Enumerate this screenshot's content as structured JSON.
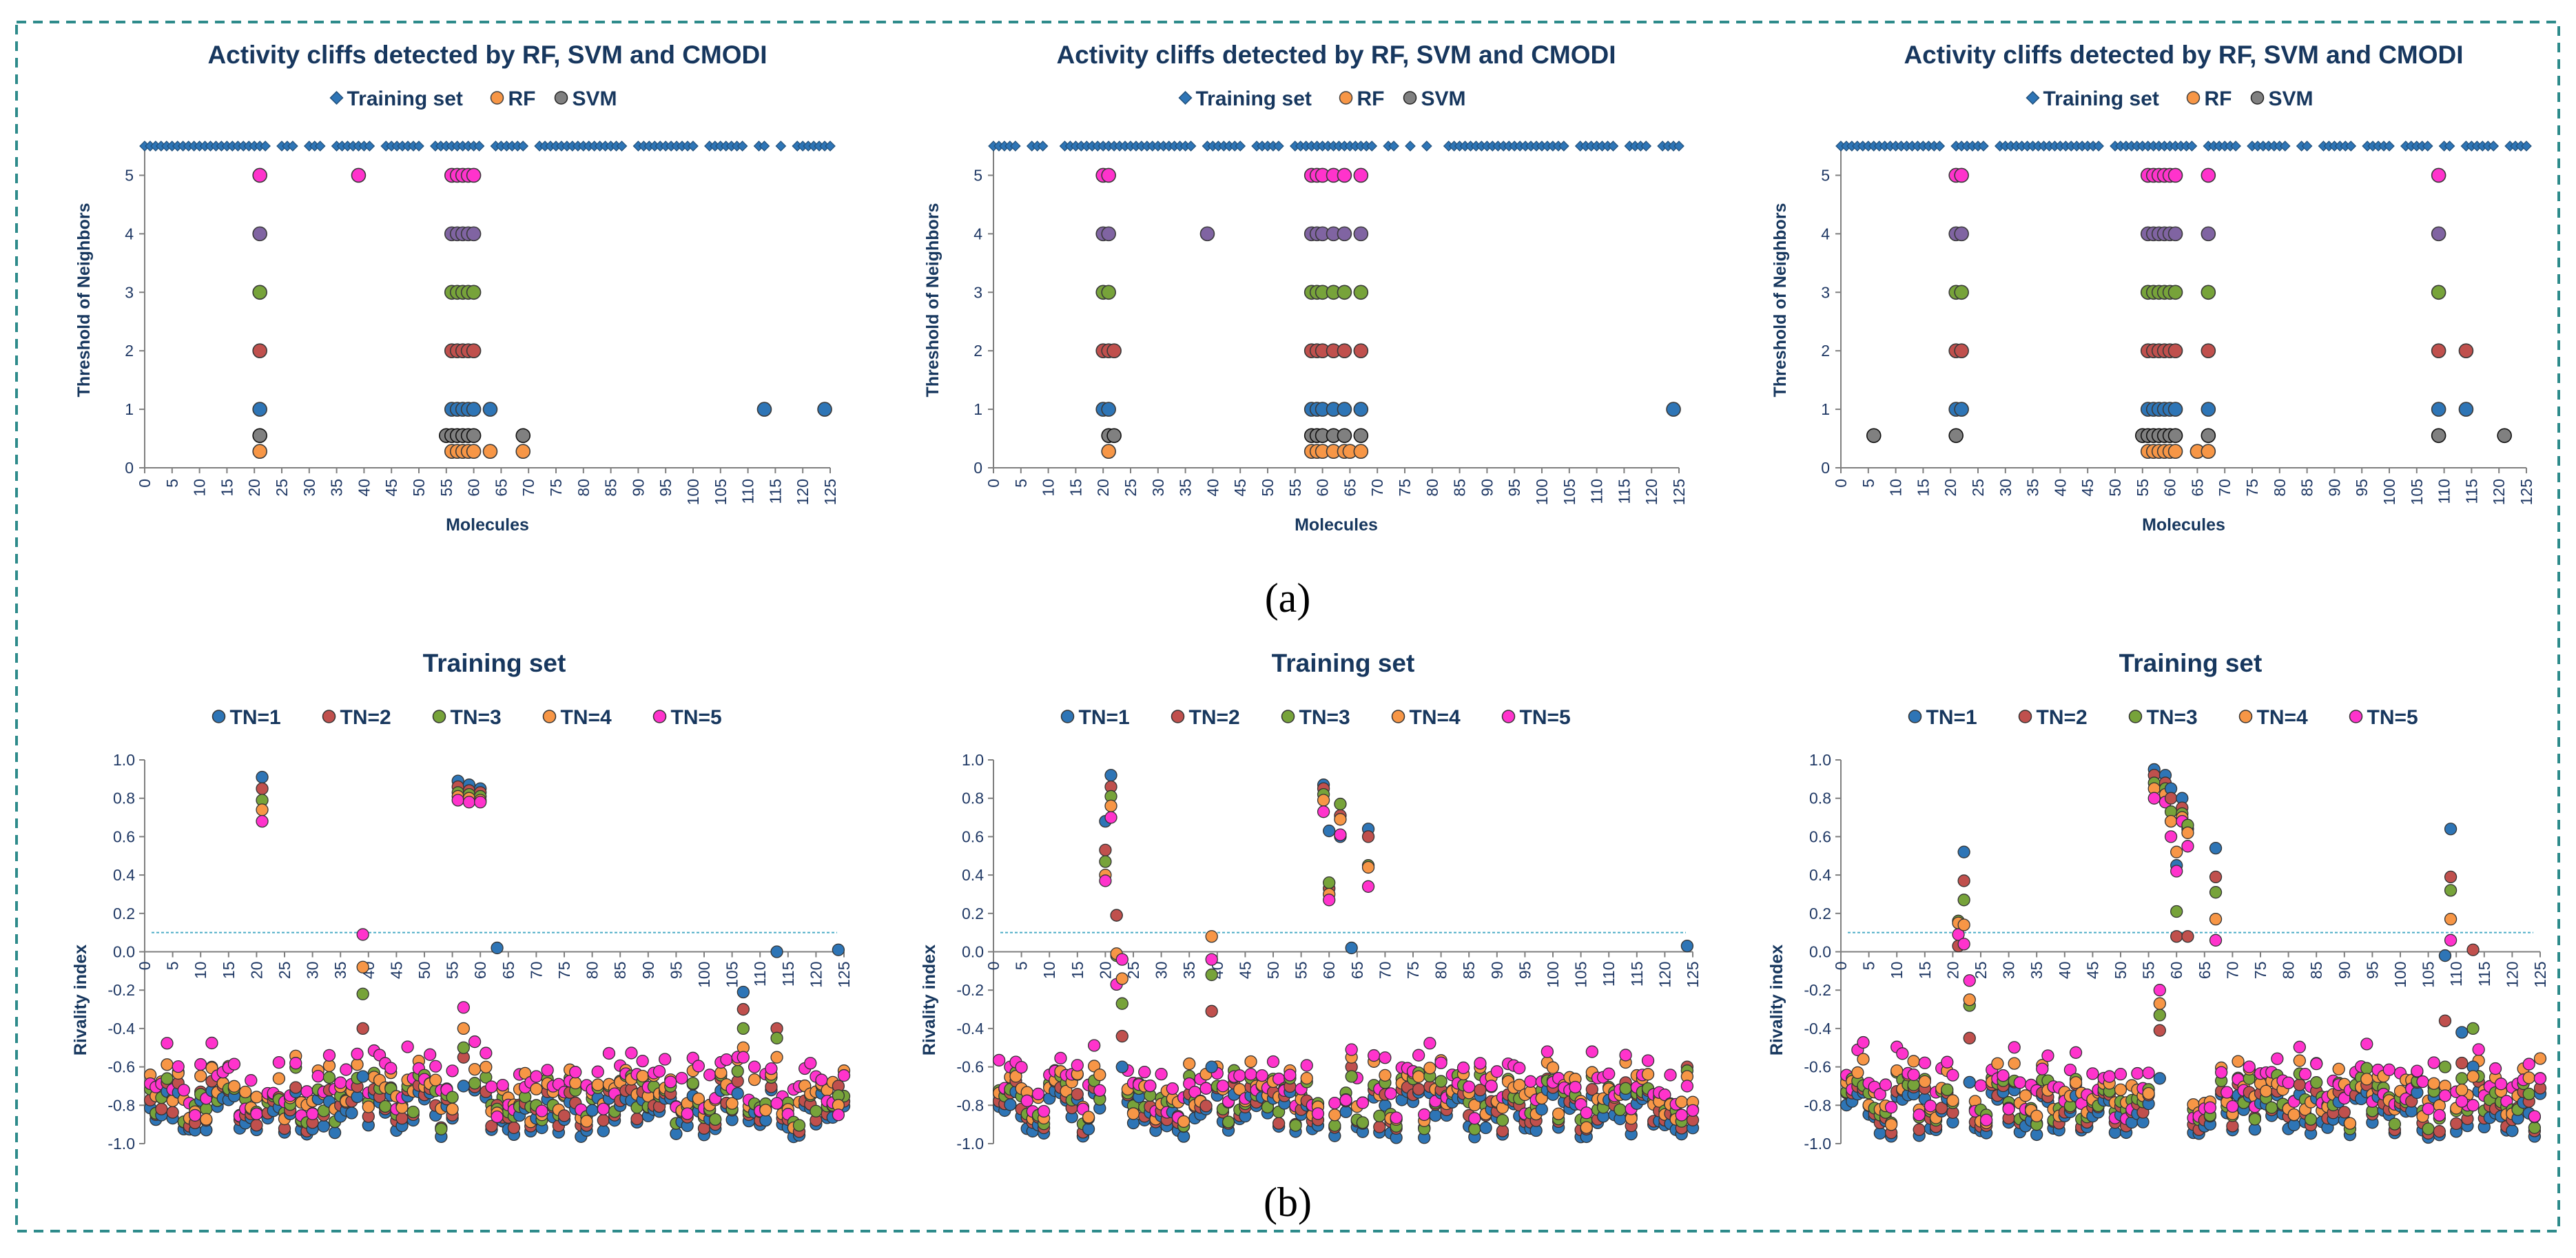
{
  "colors": {
    "border": "#2e8b8b",
    "text": "#17375e",
    "train": "#2e75b6",
    "tn1": "#2e75b6",
    "tn2": "#c0504d",
    "tn3": "#77a33a",
    "tn4": "#f79646",
    "tn5": "#ff33cc",
    "rf": "#f79646",
    "svm": "#808080",
    "refline": "#4bacc6"
  },
  "panel_labels": {
    "a": "(a)",
    "b": "(b)"
  },
  "chart_data": [
    {
      "type": "scatter",
      "title": "Activity cliffs detected by RF, SVM and CMODI",
      "xlabel": "Molecules",
      "ylabel": "Threshold of Neighbors",
      "xlim": [
        0,
        125
      ],
      "ylim": [
        0,
        5.5
      ],
      "xticks": [
        "0",
        "5",
        "10",
        "15",
        "20",
        "25",
        "30",
        "35",
        "40",
        "45",
        "50",
        "55",
        "60",
        "65",
        "70",
        "75",
        "80",
        "85",
        "90",
        "95",
        "100",
        "105",
        "110",
        "115",
        "120",
        "125"
      ],
      "yticks": [
        "0",
        "1",
        "2",
        "3",
        "4",
        "5"
      ],
      "legend": [
        "Training set",
        "RF",
        "SVM"
      ],
      "training_gaps": [
        [
          23,
          24
        ],
        [
          28,
          29
        ],
        [
          33,
          34
        ],
        [
          42,
          43
        ],
        [
          51,
          52
        ],
        [
          62,
          63
        ],
        [
          70,
          71
        ],
        [
          88,
          89
        ],
        [
          101,
          102
        ],
        [
          110,
          111
        ],
        [
          114,
          115
        ],
        [
          117,
          118
        ]
      ],
      "series": [
        {
          "name": "Training set",
          "y": 5.5
        },
        {
          "name": "TN=5",
          "x": [
            21,
            39,
            56,
            57,
            58,
            59,
            60
          ],
          "y": 5
        },
        {
          "name": "TN=4",
          "x": [
            21,
            56,
            57,
            58,
            59,
            60
          ],
          "y": 4
        },
        {
          "name": "TN=3",
          "x": [
            21,
            56,
            57,
            58,
            59,
            60
          ],
          "y": 3
        },
        {
          "name": "TN=2",
          "x": [
            21,
            56,
            57,
            58,
            59,
            60
          ],
          "y": 2
        },
        {
          "name": "TN=1",
          "x": [
            21,
            56,
            57,
            58,
            59,
            60,
            63,
            113,
            124
          ],
          "y": 1
        },
        {
          "name": "SVM",
          "x": [
            21,
            55,
            56,
            57,
            58,
            59,
            60,
            69
          ],
          "y": 0.55
        },
        {
          "name": "RF",
          "x": [
            21,
            56,
            57,
            58,
            59,
            60,
            63,
            69
          ],
          "y": 0.28
        }
      ]
    },
    {
      "type": "scatter",
      "title": "Activity cliffs detected by RF, SVM and CMODI",
      "xlabel": "Molecules",
      "ylabel": "Threshold of Neighbors",
      "xlim": [
        0,
        125
      ],
      "ylim": [
        0,
        5.5
      ],
      "xticks": [
        "0",
        "5",
        "10",
        "15",
        "20",
        "25",
        "30",
        "35",
        "40",
        "45",
        "50",
        "55",
        "60",
        "65",
        "70",
        "75",
        "80",
        "85",
        "90",
        "95",
        "100",
        "105",
        "110",
        "115",
        "120",
        "125"
      ],
      "yticks": [
        "0",
        "1",
        "2",
        "3",
        "4",
        "5"
      ],
      "legend": [
        "Training set",
        "RF",
        "SVM"
      ],
      "training_gaps": [
        [
          5,
          6
        ],
        [
          10,
          12
        ],
        [
          37,
          38
        ],
        [
          46,
          47
        ],
        [
          53,
          54
        ],
        [
          70,
          71
        ],
        [
          74,
          75
        ],
        [
          77,
          78
        ],
        [
          80,
          82
        ],
        [
          105,
          106
        ],
        [
          114,
          115
        ],
        [
          120,
          121
        ]
      ],
      "series": [
        {
          "name": "Training set",
          "y": 5.5
        },
        {
          "name": "TN=5",
          "x": [
            20,
            21,
            58,
            59,
            60,
            62,
            64,
            67
          ],
          "y": 5
        },
        {
          "name": "TN=4",
          "x": [
            20,
            21,
            39,
            58,
            59,
            60,
            62,
            64,
            67
          ],
          "y": 4
        },
        {
          "name": "TN=3",
          "x": [
            20,
            21,
            58,
            59,
            60,
            62,
            64,
            67
          ],
          "y": 3
        },
        {
          "name": "TN=2",
          "x": [
            20,
            21,
            22,
            58,
            59,
            60,
            62,
            64,
            67
          ],
          "y": 2
        },
        {
          "name": "TN=1",
          "x": [
            20,
            21,
            58,
            59,
            60,
            62,
            64,
            67,
            124
          ],
          "y": 1
        },
        {
          "name": "SVM",
          "x": [
            21,
            22,
            58,
            59,
            60,
            62,
            64,
            67
          ],
          "y": 0.55
        },
        {
          "name": "RF",
          "x": [
            21,
            58,
            59,
            60,
            62,
            64,
            65,
            67
          ],
          "y": 0.28
        }
      ]
    },
    {
      "type": "scatter",
      "title": "Activity cliffs detected by RF, SVM and CMODI",
      "xlabel": "Molecules",
      "ylabel": "Threshold of Neighbors",
      "xlim": [
        0,
        125
      ],
      "ylim": [
        0,
        5.5
      ],
      "xticks": [
        "0",
        "5",
        "10",
        "15",
        "20",
        "25",
        "30",
        "35",
        "40",
        "45",
        "50",
        "55",
        "60",
        "65",
        "70",
        "75",
        "80",
        "85",
        "90",
        "95",
        "100",
        "105",
        "110",
        "115",
        "120",
        "125"
      ],
      "yticks": [
        "0",
        "1",
        "2",
        "3",
        "4",
        "5"
      ],
      "legend": [
        "Training set",
        "RF",
        "SVM"
      ],
      "training_gaps": [
        [
          19,
          20
        ],
        [
          27,
          28
        ],
        [
          48,
          49
        ],
        [
          65,
          66
        ],
        [
          73,
          74
        ],
        [
          82,
          83
        ],
        [
          86,
          87
        ],
        [
          94,
          95
        ],
        [
          101,
          102
        ],
        [
          108,
          109
        ],
        [
          112,
          113
        ],
        [
          120,
          121
        ]
      ],
      "series": [
        {
          "name": "Training set",
          "y": 5.5
        },
        {
          "name": "TN=5",
          "x": [
            21,
            22,
            56,
            57,
            58,
            59,
            60,
            61,
            67,
            109
          ],
          "y": 5
        },
        {
          "name": "TN=4",
          "x": [
            21,
            22,
            56,
            57,
            58,
            59,
            60,
            61,
            67,
            109
          ],
          "y": 4
        },
        {
          "name": "TN=3",
          "x": [
            21,
            22,
            56,
            57,
            58,
            59,
            60,
            61,
            67,
            109
          ],
          "y": 3
        },
        {
          "name": "TN=2",
          "x": [
            21,
            22,
            56,
            57,
            58,
            59,
            60,
            61,
            67,
            109,
            114
          ],
          "y": 2
        },
        {
          "name": "TN=1",
          "x": [
            21,
            22,
            56,
            57,
            58,
            59,
            60,
            61,
            67,
            109,
            114
          ],
          "y": 1
        },
        {
          "name": "SVM",
          "x": [
            6,
            21,
            55,
            56,
            57,
            58,
            59,
            60,
            61,
            67,
            109,
            121
          ],
          "y": 0.55
        },
        {
          "name": "RF",
          "x": [
            56,
            57,
            58,
            59,
            60,
            61,
            65,
            67
          ],
          "y": 0.28
        }
      ]
    },
    {
      "type": "scatter",
      "title": "Training set",
      "xlabel": "",
      "ylabel": "Rivality index",
      "xlim": [
        0,
        125
      ],
      "ylim": [
        -1.0,
        1.0
      ],
      "xticks": [
        "0",
        "5",
        "10",
        "15",
        "20",
        "25",
        "30",
        "35",
        "40",
        "45",
        "50",
        "55",
        "60",
        "65",
        "70",
        "75",
        "80",
        "85",
        "90",
        "95",
        "100",
        "105",
        "110",
        "115",
        "120",
        "125"
      ],
      "yticks": [
        "1.0",
        "0.8",
        "0.6",
        "0.4",
        "0.2",
        "0.0",
        "-0.2",
        "-0.4",
        "-0.6",
        "-0.8",
        "-1.0"
      ],
      "legend": [
        "TN=1",
        "TN=2",
        "TN=3",
        "TN=4",
        "TN=5"
      ],
      "reference_line": 0.1,
      "peaks": [
        {
          "x": 21,
          "v": [
            0.91,
            0.85,
            0.79,
            0.74,
            0.68
          ]
        },
        {
          "x": 39,
          "v": [
            -0.65,
            -0.4,
            -0.22,
            -0.08,
            0.09
          ]
        },
        {
          "x": 56,
          "v": [
            0.89,
            0.86,
            0.83,
            0.81,
            0.79
          ]
        },
        {
          "x": 57,
          "v": [
            -0.7,
            -0.55,
            -0.5,
            -0.4,
            -0.29
          ]
        },
        {
          "x": 58,
          "v": [
            0.87,
            0.84,
            0.82,
            0.8,
            0.78
          ]
        },
        {
          "x": 60,
          "v": [
            0.85,
            0.83,
            0.81,
            0.79,
            0.78
          ]
        },
        {
          "x": 63,
          "v": [
            0.02,
            -0.8,
            -0.82,
            -0.84,
            -0.86
          ]
        },
        {
          "x": 107,
          "v": [
            -0.21,
            -0.3,
            -0.4,
            -0.5,
            -0.55
          ]
        },
        {
          "x": 113,
          "v": [
            0.0,
            -0.4,
            -0.45,
            -0.55,
            -0.79
          ]
        },
        {
          "x": 124,
          "v": [
            0.01,
            -0.7,
            -0.75,
            -0.8,
            -0.85
          ]
        }
      ]
    },
    {
      "type": "scatter",
      "title": "Training set",
      "xlabel": "",
      "ylabel": "Rivality index",
      "xlim": [
        0,
        125
      ],
      "ylim": [
        -1.0,
        1.0
      ],
      "xticks": [
        "0",
        "5",
        "10",
        "15",
        "20",
        "25",
        "30",
        "35",
        "40",
        "45",
        "50",
        "55",
        "60",
        "65",
        "70",
        "75",
        "80",
        "85",
        "90",
        "95",
        "100",
        "105",
        "110",
        "115",
        "120",
        "125"
      ],
      "yticks": [
        "1.0",
        "0.8",
        "0.6",
        "0.4",
        "0.2",
        "0.0",
        "-0.2",
        "-0.4",
        "-0.6",
        "-0.8",
        "-1.0"
      ],
      "legend": [
        "TN=1",
        "TN=2",
        "TN=3",
        "TN=4",
        "TN=5"
      ],
      "reference_line": 0.1,
      "peaks": [
        {
          "x": 20,
          "v": [
            0.68,
            0.53,
            0.47,
            0.4,
            0.37
          ]
        },
        {
          "x": 21,
          "v": [
            0.92,
            0.86,
            0.81,
            0.76,
            0.7
          ]
        },
        {
          "x": 22,
          "v": [
            0.19,
            0.19,
            -0.02,
            -0.01,
            -0.17
          ]
        },
        {
          "x": 23,
          "v": [
            -0.6,
            -0.44,
            -0.27,
            -0.14,
            -0.04
          ]
        },
        {
          "x": 39,
          "v": [
            -0.6,
            -0.31,
            -0.12,
            0.08,
            -0.04
          ]
        },
        {
          "x": 59,
          "v": [
            0.87,
            0.85,
            0.82,
            0.79,
            0.73
          ]
        },
        {
          "x": 60,
          "v": [
            0.63,
            0.33,
            0.36,
            0.3,
            0.27
          ]
        },
        {
          "x": 62,
          "v": [
            0.6,
            0.71,
            0.77,
            0.69,
            0.61
          ]
        },
        {
          "x": 64,
          "v": [
            0.02,
            -0.6,
            -0.65,
            -0.55,
            -0.51
          ]
        },
        {
          "x": 67,
          "v": [
            0.64,
            0.6,
            0.45,
            0.44,
            0.34
          ]
        },
        {
          "x": 124,
          "v": [
            0.03,
            -0.6,
            -0.62,
            -0.65,
            -0.7
          ]
        }
      ]
    },
    {
      "type": "scatter",
      "title": "Training set",
      "xlabel": "",
      "ylabel": "Rivality index",
      "xlim": [
        0,
        125
      ],
      "ylim": [
        -1.0,
        1.0
      ],
      "xticks": [
        "0",
        "5",
        "10",
        "15",
        "20",
        "25",
        "30",
        "35",
        "40",
        "45",
        "50",
        "55",
        "60",
        "65",
        "70",
        "75",
        "80",
        "85",
        "90",
        "95",
        "100",
        "105",
        "110",
        "115",
        "120",
        "125"
      ],
      "yticks": [
        "1.0",
        "0.8",
        "0.6",
        "0.4",
        "0.2",
        "0.0",
        "-0.2",
        "-0.4",
        "-0.6",
        "-0.8",
        "-1.0"
      ],
      "legend": [
        "TN=1",
        "TN=2",
        "TN=3",
        "TN=4",
        "TN=5"
      ],
      "reference_line": 0.1,
      "peaks": [
        {
          "x": 21,
          "v": [
            0.16,
            0.03,
            0.16,
            0.15,
            0.09
          ]
        },
        {
          "x": 22,
          "v": [
            0.52,
            0.37,
            0.27,
            0.14,
            0.04
          ]
        },
        {
          "x": 23,
          "v": [
            -0.68,
            -0.45,
            -0.28,
            -0.25,
            -0.15
          ]
        },
        {
          "x": 56,
          "v": [
            0.95,
            0.92,
            0.88,
            0.85,
            0.8
          ]
        },
        {
          "x": 57,
          "v": [
            -0.66,
            -0.41,
            -0.33,
            -0.27,
            -0.2
          ]
        },
        {
          "x": 58,
          "v": [
            0.92,
            0.88,
            0.85,
            0.82,
            0.78
          ]
        },
        {
          "x": 59,
          "v": [
            0.85,
            0.8,
            0.73,
            0.68,
            0.6
          ]
        },
        {
          "x": 60,
          "v": [
            0.45,
            0.08,
            0.21,
            0.52,
            0.42
          ]
        },
        {
          "x": 61,
          "v": [
            0.8,
            0.75,
            0.72,
            0.7,
            0.68
          ]
        },
        {
          "x": 62,
          "v": [
            0.64,
            0.08,
            0.66,
            0.62,
            0.55
          ]
        },
        {
          "x": 67,
          "v": [
            0.54,
            0.39,
            0.31,
            0.17,
            0.06
          ]
        },
        {
          "x": 108,
          "v": [
            -0.02,
            -0.36,
            -0.6,
            -0.7,
            -0.75
          ]
        },
        {
          "x": 109,
          "v": [
            0.64,
            0.39,
            0.32,
            0.17,
            0.06
          ]
        },
        {
          "x": 111,
          "v": [
            -0.42,
            -0.58,
            -0.66,
            -0.72,
            -0.78
          ]
        },
        {
          "x": 113,
          "v": [
            -0.6,
            0.01,
            -0.4,
            -0.65,
            -0.8
          ]
        }
      ]
    }
  ]
}
